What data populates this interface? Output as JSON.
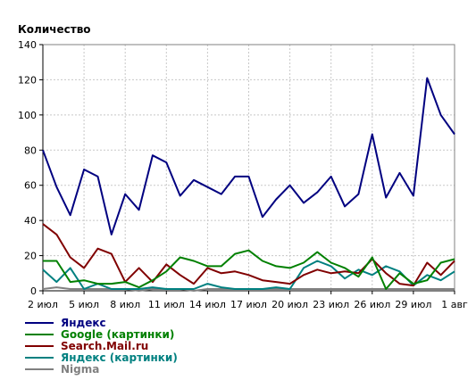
{
  "chart_data": {
    "type": "line",
    "ylabel": "Количество",
    "xlabel": "",
    "title": "",
    "ylim": [
      0,
      140
    ],
    "yticks": [
      0,
      20,
      40,
      60,
      80,
      100,
      120,
      140
    ],
    "x": [
      "2 июл",
      "3 июл",
      "4 июл",
      "5 июл",
      "6 июл",
      "7 июл",
      "8 июл",
      "9 июл",
      "10 июл",
      "11 июл",
      "12 июл",
      "13 июл",
      "14 июл",
      "15 июл",
      "16 июл",
      "17 июл",
      "18 июл",
      "19 июл",
      "20 июл",
      "21 июл",
      "22 июл",
      "23 июл",
      "24 июл",
      "25 июл",
      "26 июл",
      "27 июл",
      "28 июл",
      "29 июл",
      "30 июл",
      "31 июл",
      "1 авг"
    ],
    "xtick_labels": [
      "2 июл",
      "5 июл",
      "8 июл",
      "11 июл",
      "14 июл",
      "17 июл",
      "20 июл",
      "23 июл",
      "26 июл",
      "29 июл",
      "1 авг"
    ],
    "grid": true,
    "legend_position": "bottom-left",
    "series": [
      {
        "name": "Яндекс",
        "color": "#000080",
        "values": [
          80,
          59,
          43,
          69,
          65,
          32,
          55,
          46,
          77,
          73,
          54,
          63,
          59,
          55,
          65,
          65,
          42,
          52,
          60,
          50,
          56,
          65,
          48,
          55,
          89,
          53,
          67,
          54,
          121,
          100,
          89
        ]
      },
      {
        "name": "Google (картинки)",
        "color": "#008000",
        "values": [
          17,
          17,
          5,
          6,
          4,
          4,
          5,
          2,
          6,
          11,
          19,
          17,
          14,
          14,
          21,
          23,
          17,
          14,
          13,
          16,
          22,
          16,
          13,
          8,
          19,
          1,
          10,
          4,
          6,
          16,
          18
        ]
      },
      {
        "name": "Search.Mail.ru",
        "color": "#800000",
        "values": [
          38,
          32,
          19,
          13,
          24,
          21,
          5,
          13,
          5,
          15,
          9,
          4,
          13,
          10,
          11,
          9,
          6,
          5,
          4,
          9,
          12,
          10,
          11,
          10,
          18,
          10,
          4,
          3,
          16,
          9,
          17
        ]
      },
      {
        "name": "Яндекс (картинки)",
        "color": "#008080",
        "values": [
          12,
          5,
          13,
          1,
          4,
          1,
          1,
          1,
          2,
          1,
          1,
          1,
          4,
          2,
          1,
          1,
          1,
          2,
          1,
          13,
          17,
          14,
          7,
          12,
          9,
          14,
          11,
          3,
          9,
          6,
          11
        ]
      },
      {
        "name": "Nigma",
        "color": "#808080",
        "values": [
          1,
          2,
          1,
          1,
          1,
          1,
          1,
          0,
          1,
          1,
          1,
          0,
          1,
          1,
          1,
          1,
          1,
          1,
          1,
          1,
          1,
          1,
          1,
          1,
          1,
          1,
          1,
          1,
          1,
          1,
          1
        ]
      }
    ]
  }
}
